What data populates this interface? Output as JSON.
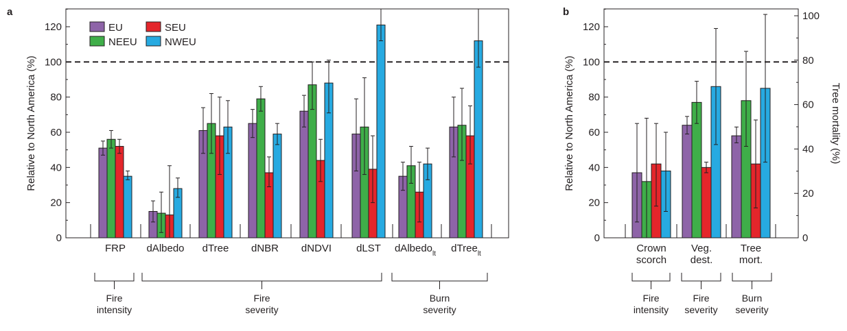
{
  "colors": {
    "EU": "#8e64a8",
    "NEEU": "#3fae49",
    "SEU": "#e4262b",
    "NWEU": "#27aae1",
    "axis": "#231f20"
  },
  "chart_data": [
    {
      "panel": "a",
      "type": "bar",
      "ylabel": "Relative to North America (%)",
      "ylim": [
        0,
        130
      ],
      "yticks": [
        0,
        20,
        40,
        60,
        80,
        100,
        120
      ],
      "reference_line": 100,
      "legend": {
        "placement": "top-left",
        "entries": [
          "EU",
          "NEEU",
          "SEU",
          "NWEU"
        ]
      },
      "categories": [
        {
          "label": "FRP",
          "sub": ""
        },
        {
          "label": "dAlbedo",
          "sub": ""
        },
        {
          "label": "dTree",
          "sub": ""
        },
        {
          "label": "dNBR",
          "sub": ""
        },
        {
          "label": "dNDVI",
          "sub": ""
        },
        {
          "label": "dLST",
          "sub": ""
        },
        {
          "label": "dAlbedo",
          "sub": "lt"
        },
        {
          "label": "dTree",
          "sub": "lt"
        }
      ],
      "series": [
        {
          "name": "EU",
          "values": [
            51,
            15,
            61,
            65,
            72,
            59,
            35,
            63
          ],
          "err_low": [
            47,
            9,
            48,
            57,
            63,
            38,
            27,
            46
          ],
          "err_high": [
            55,
            21,
            74,
            73,
            81,
            79,
            43,
            80
          ]
        },
        {
          "name": "NEEU",
          "values": [
            56,
            14,
            65,
            79,
            87,
            63,
            41,
            64
          ],
          "err_low": [
            51,
            3,
            48,
            72,
            73,
            36,
            31,
            44
          ],
          "err_high": [
            61,
            26,
            82,
            86,
            100,
            91,
            52,
            85
          ]
        },
        {
          "name": "SEU",
          "values": [
            52,
            13,
            58,
            37,
            44,
            39,
            26,
            58
          ],
          "err_low": [
            48,
            0,
            36,
            29,
            32,
            20,
            9,
            42
          ],
          "err_high": [
            56,
            41,
            80,
            46,
            56,
            58,
            43,
            75
          ]
        },
        {
          "name": "NWEU",
          "values": [
            35,
            28,
            63,
            59,
            88,
            121,
            42,
            112
          ],
          "err_low": [
            33,
            23,
            48,
            53,
            71,
            112,
            33,
            97
          ],
          "err_high": [
            38,
            34,
            78,
            65,
            101,
            130,
            51,
            130
          ]
        }
      ],
      "groups": [
        {
          "label": [
            "Fire",
            "intensity"
          ],
          "from": 0,
          "to": 0
        },
        {
          "label": [
            "Fire",
            "severity"
          ],
          "from": 1,
          "to": 5
        },
        {
          "label": [
            "Burn",
            "severity"
          ],
          "from": 6,
          "to": 7
        }
      ]
    },
    {
      "panel": "b",
      "type": "bar",
      "ylabel": "Relative to North America (%)",
      "ylabel_right": "Tree mortality (%)",
      "ylim": [
        0,
        130
      ],
      "yticks": [
        0,
        20,
        40,
        60,
        80,
        100,
        120
      ],
      "yticks_right": [
        0,
        20,
        40,
        60,
        80,
        100
      ],
      "reference_line": 100,
      "categories": [
        {
          "label": [
            "Crown",
            "scorch"
          ]
        },
        {
          "label": [
            "Veg.",
            "dest."
          ]
        },
        {
          "label": [
            "Tree",
            "mort."
          ]
        }
      ],
      "series": [
        {
          "name": "EU",
          "values": [
            37,
            64,
            58
          ],
          "err_low": [
            9,
            59,
            54
          ],
          "err_high": [
            65,
            69,
            63
          ]
        },
        {
          "name": "NEEU",
          "values": [
            32,
            77,
            78
          ],
          "err_low": [
            0,
            65,
            52
          ],
          "err_high": [
            68,
            89,
            106
          ]
        },
        {
          "name": "SEU",
          "values": [
            42,
            40,
            42
          ],
          "err_low": [
            18,
            37,
            17
          ],
          "err_high": [
            65,
            43,
            67
          ]
        },
        {
          "name": "NWEU",
          "values": [
            38,
            86,
            85
          ],
          "err_low": [
            15,
            53,
            43
          ],
          "err_high": [
            60,
            119,
            127
          ]
        }
      ],
      "groups": [
        {
          "label": [
            "Fire",
            "intensity"
          ],
          "from": 0,
          "to": 0
        },
        {
          "label": [
            "Fire",
            "severity"
          ],
          "from": 1,
          "to": 1
        },
        {
          "label": [
            "Burn",
            "severity"
          ],
          "from": 2,
          "to": 2
        }
      ]
    }
  ]
}
